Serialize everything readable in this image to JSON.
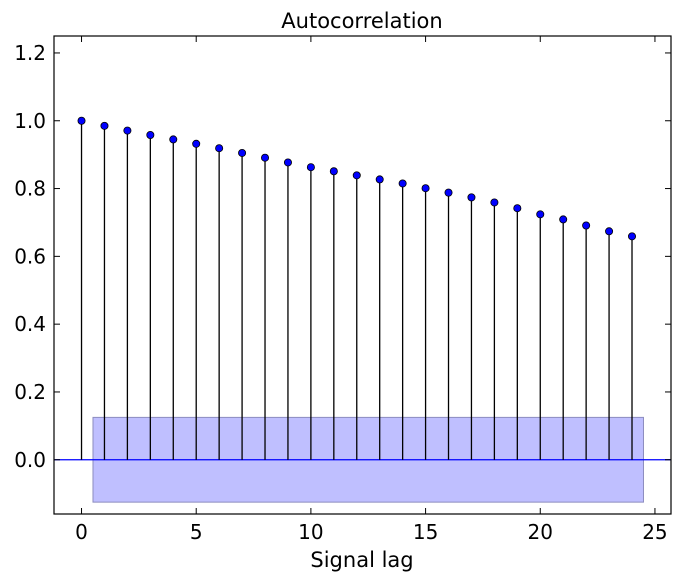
{
  "chart_data": {
    "type": "stem",
    "title": "Autocorrelation",
    "xlabel": "Signal lag",
    "ylabel": "",
    "xlim": [
      -1.2,
      25.7
    ],
    "ylim": [
      -0.16,
      1.25
    ],
    "xticks": [
      0,
      5,
      10,
      15,
      20,
      25
    ],
    "yticks": [
      0.0,
      0.2,
      0.4,
      0.6,
      0.8,
      1.0,
      1.2
    ],
    "ytick_labels": [
      "0.0",
      "0.2",
      "0.4",
      "0.6",
      "0.8",
      "1.0",
      "1.2"
    ],
    "x": [
      0,
      1,
      2,
      3,
      4,
      5,
      6,
      7,
      8,
      9,
      10,
      11,
      12,
      13,
      14,
      15,
      16,
      17,
      18,
      19,
      20,
      21,
      22,
      23,
      24
    ],
    "values": [
      1.0,
      0.985,
      0.971,
      0.958,
      0.945,
      0.932,
      0.919,
      0.905,
      0.891,
      0.877,
      0.863,
      0.851,
      0.839,
      0.827,
      0.815,
      0.801,
      0.788,
      0.774,
      0.759,
      0.742,
      0.724,
      0.709,
      0.691,
      0.674,
      0.659
    ],
    "confidence_band": {
      "x_start": 0.5,
      "x_end": 24.5,
      "lower": -0.125,
      "upper": 0.125
    },
    "grid": false,
    "colors": {
      "marker": "#0000ff",
      "stem": "#000000",
      "baseline": "#0000ff",
      "band": "#bfbfff"
    }
  }
}
